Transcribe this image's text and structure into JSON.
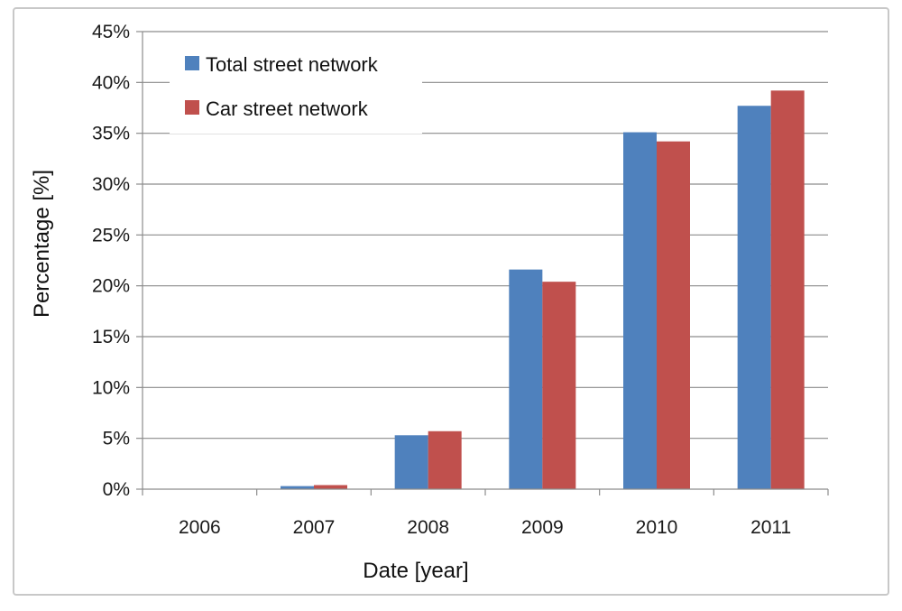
{
  "chart_data": {
    "type": "bar",
    "categories": [
      "2006",
      "2007",
      "2008",
      "2009",
      "2010",
      "2011"
    ],
    "series": [
      {
        "name": "Total street network",
        "values": [
          0,
          0.3,
          5.3,
          21.6,
          35.1,
          37.7
        ],
        "color": "#4f81bd"
      },
      {
        "name": "Car street network",
        "values": [
          0,
          0.4,
          5.7,
          20.4,
          34.2,
          39.2
        ],
        "color": "#c0504d"
      }
    ],
    "title": "",
    "xlabel": "Date [year]",
    "ylabel": "Percentage [%]",
    "ylim": [
      0,
      45
    ],
    "yticks": [
      "0%",
      "5%",
      "10%",
      "15%",
      "20%",
      "25%",
      "30%",
      "35%",
      "40%",
      "45%"
    ],
    "grid": true,
    "legend_position": "top-left"
  }
}
